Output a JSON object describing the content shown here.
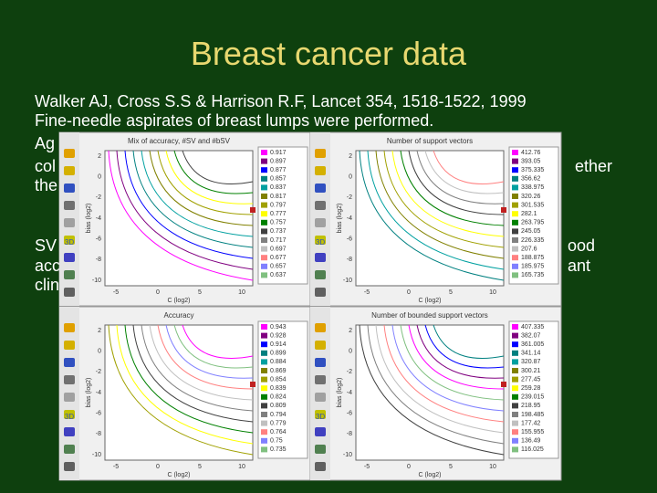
{
  "title": "Breast cancer data",
  "text_fragments": [
    "Walker AJ, Cross S.S & Harrison R.F, Lancet 354, 1518-1522, 1999",
    "Fine-needle aspirates of breast lumps were performed.",
    "Ag",
    "col",
    "ether",
    "the",
    "SV",
    "ood",
    "acc",
    "ant",
    "clin"
  ],
  "panels": [
    {
      "title": "Mix of accuracy, #SV and #bSV",
      "x_label": "C (log2)",
      "y_label": "bias (log2)",
      "toolbar_label": "3D",
      "x_ticks": [
        "-5",
        "0",
        "5",
        "10"
      ],
      "y_ticks": [
        "2",
        "0",
        "-2",
        "-4",
        "-6",
        "-8",
        "-10"
      ],
      "legend": [
        "0.917",
        "0.897",
        "0.877",
        "0.857",
        "0.837",
        "0.817",
        "0.797",
        "0.777",
        "0.757",
        "0.737",
        "0.717",
        "0.697",
        "0.677",
        "0.657",
        "0.637"
      ]
    },
    {
      "title": "Number of support vectors",
      "x_label": "C (log2)",
      "y_label": "bias (log2)",
      "toolbar_label": "3D",
      "x_ticks": [
        "-5",
        "0",
        "5",
        "10"
      ],
      "y_ticks": [
        "2",
        "0",
        "-2",
        "-4",
        "-6",
        "-8",
        "-10"
      ],
      "legend": [
        "412.76",
        "393.05",
        "375.335",
        "356.62",
        "338.975",
        "320.26",
        "301.535",
        "282.1",
        "263.795",
        "245.05",
        "226.335",
        "207.6",
        "188.875",
        "185.975",
        "165.735"
      ]
    },
    {
      "title": "Accuracy",
      "x_label": "C (log2)",
      "y_label": "bias (log2)",
      "toolbar_label": "3D",
      "x_ticks": [
        "-5",
        "0",
        "5",
        "10"
      ],
      "y_ticks": [
        "2",
        "0",
        "-2",
        "-4",
        "-6",
        "-8",
        "-10"
      ],
      "legend": [
        "0.943",
        "0.928",
        "0.914",
        "0.899",
        "0.884",
        "0.869",
        "0.854",
        "0.839",
        "0.824",
        "0.809",
        "0.794",
        "0.779",
        "0.764",
        "0.75",
        "0.735"
      ]
    },
    {
      "title": "Number of bounded support vectors",
      "x_label": "C (log2)",
      "y_label": "bias (log2)",
      "toolbar_label": "3D",
      "x_ticks": [
        "-5",
        "0",
        "5",
        "10"
      ],
      "y_ticks": [
        "2",
        "0",
        "-2",
        "-4",
        "-6",
        "-8",
        "-10"
      ],
      "legend": [
        "407.335",
        "382.07",
        "361.005",
        "341.14",
        "320.87",
        "300.21",
        "277.45",
        "259.28",
        "239.015",
        "218.95",
        "198.485",
        "177.42",
        "155.955",
        "136.49",
        "116.025"
      ]
    }
  ]
}
